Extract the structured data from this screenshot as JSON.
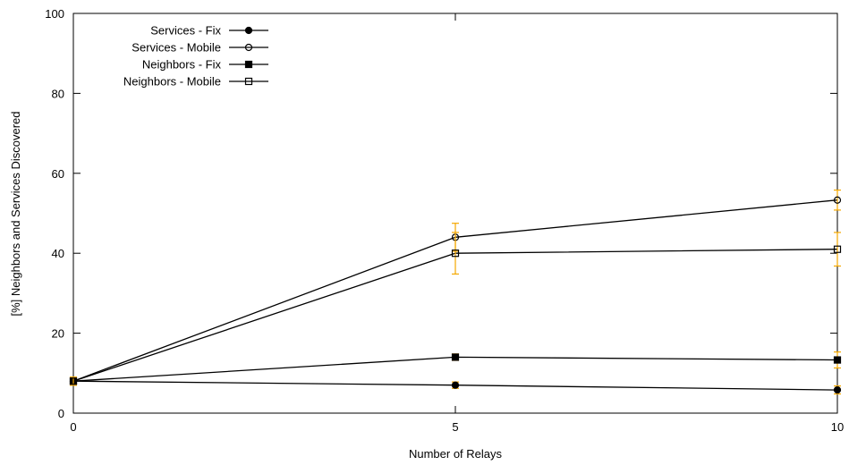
{
  "chart_data": {
    "type": "line",
    "xlabel": "Number of Relays",
    "ylabel": "[%] Neighbors and Services Discovered",
    "xlim": [
      0,
      10
    ],
    "ylim": [
      0,
      100
    ],
    "x": [
      0,
      5,
      10
    ],
    "x_ticks": [
      "0",
      "5",
      "10"
    ],
    "y_ticks": [
      "0",
      "20",
      "40",
      "60",
      "80",
      "100"
    ],
    "legend_position": "top-left",
    "grid": false,
    "errorbar_color": "#f5a800",
    "series": [
      {
        "name": "Services - Fix",
        "marker": "circle-filled",
        "values": [
          8,
          7,
          5.8
        ],
        "errors": [
          1,
          0.8,
          1
        ]
      },
      {
        "name": "Services - Mobile",
        "marker": "circle-open",
        "values": [
          8,
          44,
          53.3
        ],
        "errors": [
          1,
          3.5,
          2.5
        ]
      },
      {
        "name": "Neighbors - Fix",
        "marker": "square-filled",
        "values": [
          8,
          14,
          13.3
        ],
        "errors": [
          1,
          0.8,
          2
        ]
      },
      {
        "name": "Neighbors - Mobile",
        "marker": "square-open",
        "values": [
          8,
          40,
          41
        ],
        "errors": [
          1,
          5.2,
          4.2
        ]
      }
    ]
  }
}
